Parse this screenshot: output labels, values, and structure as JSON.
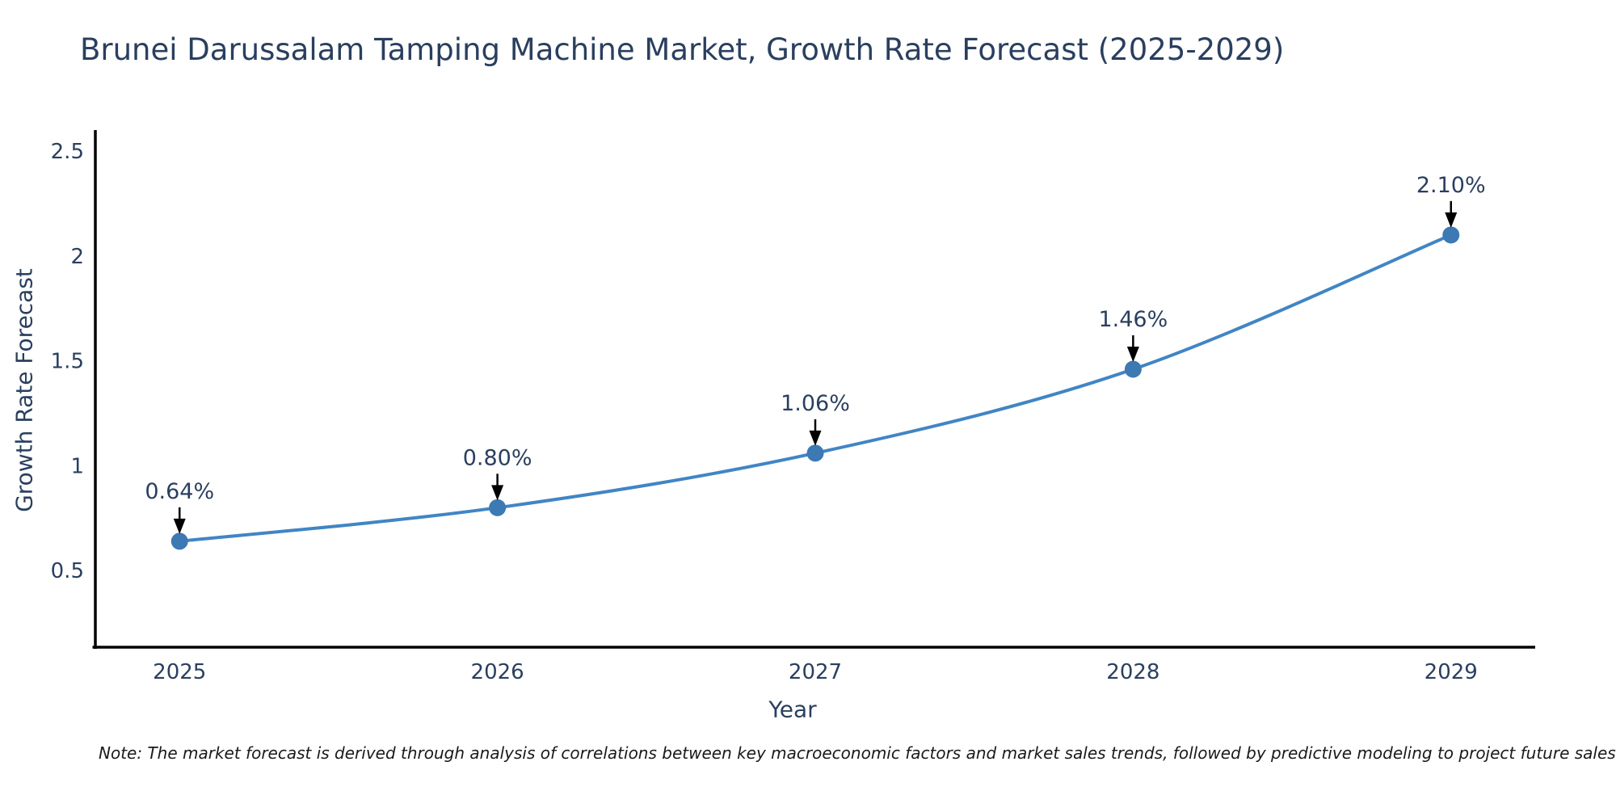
{
  "chart_data": {
    "type": "line",
    "title": "Brunei Darussalam Tamping Machine Market, Growth Rate Forecast (2025-2029)",
    "xlabel": "Year",
    "ylabel": "Growth Rate Forecast",
    "x": [
      2025,
      2026,
      2027,
      2028,
      2029
    ],
    "y": [
      0.64,
      0.8,
      1.06,
      1.46,
      2.1
    ],
    "point_labels": [
      "0.64%",
      "0.80%",
      "1.06%",
      "1.46%",
      "2.10%"
    ],
    "ytick_labels": [
      "0.5",
      "1",
      "1.5",
      "2",
      "2.5"
    ],
    "yticks": [
      0.5,
      1,
      1.5,
      2,
      2.5
    ],
    "xlim": [
      2024.735,
      2029.265
    ],
    "ylim": [
      0.135,
      2.6
    ],
    "grid": false,
    "legend": "none",
    "line_shape": "spline",
    "colors": {
      "line": "#4185c4",
      "marker": "#3d79b3",
      "axis": "#000000",
      "text": "#2a3f5f",
      "annotation_arrow": "#000000"
    },
    "note": "Note: The market forecast is derived through analysis of correlations between key macroeconomic factors and market sales trends, followed by predictive modeling to project future sales"
  }
}
